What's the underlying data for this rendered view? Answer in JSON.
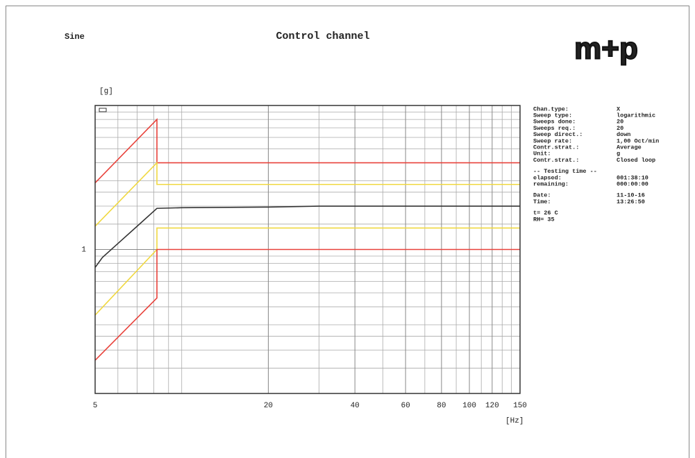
{
  "chart_data": {
    "type": "line",
    "title": "Control channel",
    "subtitle": "Sine",
    "logo": "m+p",
    "y_label": "[g]",
    "x_label": "[Hz]",
    "log_x": true,
    "log_y": true,
    "grid": true,
    "xlim": [
      5,
      150
    ],
    "xticks": [
      5,
      20,
      40,
      60,
      80,
      100,
      120,
      150
    ],
    "xgrid": [
      6,
      7,
      8,
      9,
      10,
      30,
      50,
      70,
      90,
      110,
      130,
      140
    ],
    "ylim": [
      0.1,
      10
    ],
    "yticks": [
      1
    ],
    "ygrid": [
      0.15,
      0.2,
      0.25,
      0.3,
      0.4,
      0.5,
      0.6,
      0.7,
      0.8,
      0.9,
      1.5,
      2,
      2.5,
      3,
      4,
      5,
      6,
      7,
      8,
      9
    ],
    "series": [
      {
        "color": "#e8413a",
        "x": [
          5,
          8.2,
          8.2,
          150
        ],
        "values": [
          2.9,
          8,
          4,
          4
        ]
      },
      {
        "color": "#f0d840",
        "x": [
          5,
          8.2,
          8.2,
          150
        ],
        "values": [
          1.45,
          4,
          2.83,
          2.83
        ]
      },
      {
        "color": "#333333",
        "x": [
          5,
          5.3,
          6,
          7,
          8.2,
          10,
          20,
          30,
          150
        ],
        "values": [
          0.75,
          0.88,
          1.1,
          1.45,
          1.93,
          1.95,
          1.97,
          2,
          2
        ]
      },
      {
        "color": "#f0d840",
        "x": [
          5,
          8.2,
          8.2,
          150
        ],
        "values": [
          0.35,
          1,
          1.41,
          1.41
        ]
      },
      {
        "color": "#e8413a",
        "x": [
          5,
          8.2,
          8.2,
          150
        ],
        "values": [
          0.17,
          0.46,
          1,
          1
        ]
      }
    ]
  },
  "info": [
    [
      {
        "label": "Chan.type:",
        "value": "X"
      },
      {
        "label": "Sweep type:",
        "value": "logarithmic"
      },
      {
        "label": "Sweeps done:",
        "value": "20"
      },
      {
        "label": "Sweeps req.:",
        "value": "20"
      },
      {
        "label": "Sweep direct.:",
        "value": "down"
      },
      {
        "label": "Sweep rate:",
        "value": "1,00 Oct/min"
      },
      {
        "label": "Contr.strat.:",
        "value": "Average"
      },
      {
        "label": "Unit:",
        "value": "g"
      },
      {
        "label": "Contr.strat.:",
        "value": "Closed loop"
      }
    ],
    [
      {
        "label": "-- Testing time --"
      },
      {
        "label": "elapsed:",
        "value": "001:38:10"
      },
      {
        "label": "remaining:",
        "value": "000:00:00"
      }
    ],
    [
      {
        "label": "Date:",
        "value": "11-10-16"
      },
      {
        "label": "Time:",
        "value": "13:26:50"
      }
    ],
    [
      {
        "label": "t= 26 C"
      },
      {
        "label": "RH= 35"
      }
    ]
  ]
}
